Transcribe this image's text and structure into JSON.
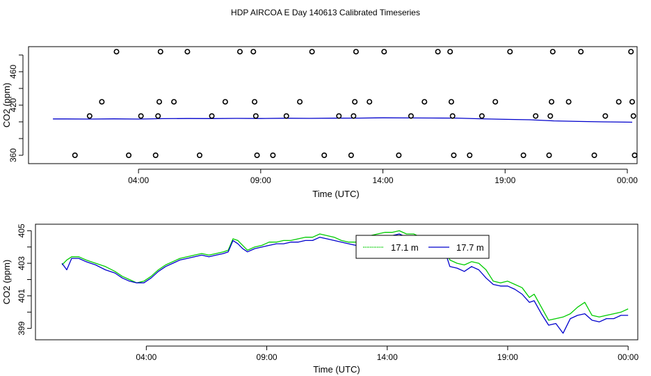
{
  "title": "HDP AIRCOA E  Day 140613  Calibrated Timeseries",
  "colors": {
    "green": "#00cc00",
    "blue": "#0000cc",
    "axis": "#000000"
  },
  "chart_data": [
    {
      "type": "scatter",
      "xlabel": "Time (UTC)",
      "ylabel": "CO2 (ppm)",
      "xticks": [
        {
          "x": 4,
          "label": "04:00"
        },
        {
          "x": 9,
          "label": "09:00"
        },
        {
          "x": 14,
          "label": "14:00"
        },
        {
          "x": 19,
          "label": "19:00"
        },
        {
          "x": 24,
          "label": "00:00"
        }
      ],
      "yticks": [
        360,
        420,
        460
      ],
      "xlim": [
        -0.5,
        24.4
      ],
      "ylim": [
        350,
        490
      ],
      "grid": false,
      "scatter_points": [
        {
          "x": 1.4,
          "y": 360
        },
        {
          "x": 2.0,
          "y": 407
        },
        {
          "x": 2.5,
          "y": 424
        },
        {
          "x": 3.1,
          "y": 484
        },
        {
          "x": 3.6,
          "y": 360
        },
        {
          "x": 4.1,
          "y": 407
        },
        {
          "x": 4.7,
          "y": 360
        },
        {
          "x": 4.8,
          "y": 407
        },
        {
          "x": 4.85,
          "y": 424
        },
        {
          "x": 4.9,
          "y": 484
        },
        {
          "x": 5.45,
          "y": 424
        },
        {
          "x": 6.0,
          "y": 484
        },
        {
          "x": 6.5,
          "y": 360
        },
        {
          "x": 7.0,
          "y": 407
        },
        {
          "x": 7.55,
          "y": 424
        },
        {
          "x": 8.15,
          "y": 484
        },
        {
          "x": 8.7,
          "y": 484
        },
        {
          "x": 8.75,
          "y": 424
        },
        {
          "x": 8.8,
          "y": 407
        },
        {
          "x": 8.85,
          "y": 360
        },
        {
          "x": 9.5,
          "y": 360
        },
        {
          "x": 10.05,
          "y": 407
        },
        {
          "x": 10.6,
          "y": 424
        },
        {
          "x": 11.1,
          "y": 484
        },
        {
          "x": 11.6,
          "y": 360
        },
        {
          "x": 12.2,
          "y": 407
        },
        {
          "x": 12.7,
          "y": 360
        },
        {
          "x": 12.8,
          "y": 407
        },
        {
          "x": 12.85,
          "y": 424
        },
        {
          "x": 12.9,
          "y": 484
        },
        {
          "x": 13.45,
          "y": 424
        },
        {
          "x": 14.05,
          "y": 484
        },
        {
          "x": 14.65,
          "y": 360
        },
        {
          "x": 15.15,
          "y": 407
        },
        {
          "x": 15.7,
          "y": 424
        },
        {
          "x": 16.25,
          "y": 484
        },
        {
          "x": 16.75,
          "y": 484
        },
        {
          "x": 16.8,
          "y": 424
        },
        {
          "x": 16.85,
          "y": 407
        },
        {
          "x": 16.9,
          "y": 360
        },
        {
          "x": 17.55,
          "y": 360
        },
        {
          "x": 18.05,
          "y": 407
        },
        {
          "x": 18.6,
          "y": 424
        },
        {
          "x": 19.2,
          "y": 484
        },
        {
          "x": 19.75,
          "y": 360
        },
        {
          "x": 20.25,
          "y": 407
        },
        {
          "x": 20.8,
          "y": 360
        },
        {
          "x": 20.85,
          "y": 407
        },
        {
          "x": 20.9,
          "y": 424
        },
        {
          "x": 20.95,
          "y": 484
        },
        {
          "x": 21.6,
          "y": 424
        },
        {
          "x": 22.1,
          "y": 484
        },
        {
          "x": 22.65,
          "y": 360
        },
        {
          "x": 23.1,
          "y": 407
        },
        {
          "x": 23.65,
          "y": 424
        },
        {
          "x": 24.15,
          "y": 484
        },
        {
          "x": 24.2,
          "y": 424
        },
        {
          "x": 24.25,
          "y": 407
        },
        {
          "x": 24.3,
          "y": 360
        }
      ],
      "line_series": [
        {
          "color": "#0000cc",
          "points": [
            [
              0.5,
              403.5
            ],
            [
              1.0,
              403.5
            ],
            [
              2.0,
              403.3
            ],
            [
              3.0,
              403.6
            ],
            [
              4.0,
              403.3
            ],
            [
              5.0,
              403.8
            ],
            [
              6.0,
              404.0
            ],
            [
              7.0,
              403.9
            ],
            [
              8.0,
              404.2
            ],
            [
              9.0,
              404.0
            ],
            [
              10.0,
              404.3
            ],
            [
              11.0,
              404.2
            ],
            [
              12.0,
              404.4
            ],
            [
              13.0,
              404.5
            ],
            [
              14.0,
              404.8
            ],
            [
              15.0,
              404.7
            ],
            [
              16.0,
              404.6
            ],
            [
              17.0,
              404.5
            ],
            [
              18.0,
              403.7
            ],
            [
              19.0,
              403.0
            ],
            [
              20.0,
              402.5
            ],
            [
              21.0,
              401.2
            ],
            [
              22.0,
              400.5
            ],
            [
              23.0,
              400.0
            ],
            [
              24.2,
              399.6
            ]
          ]
        }
      ]
    },
    {
      "type": "line",
      "xlabel": "Time (UTC)",
      "ylabel": "CO2 (ppm)",
      "xticks": [
        {
          "x": 4,
          "label": "04:00"
        },
        {
          "x": 9,
          "label": "09:00"
        },
        {
          "x": 14,
          "label": "14:00"
        },
        {
          "x": 19,
          "label": "19:00"
        },
        {
          "x": 24,
          "label": "00:00"
        }
      ],
      "yticks": [
        399,
        401,
        403,
        405
      ],
      "xlim": [
        -0.6,
        24.4
      ],
      "ylim": [
        398.3,
        405.4
      ],
      "grid": false,
      "legend_position": "upper-center",
      "series": [
        {
          "name": "17.1 m",
          "color": "#00cc00",
          "points": [
            [
              0.5,
              402.9
            ],
            [
              0.7,
              403.2
            ],
            [
              0.9,
              403.4
            ],
            [
              1.2,
              403.4
            ],
            [
              1.5,
              403.2
            ],
            [
              1.9,
              403.0
            ],
            [
              2.3,
              402.8
            ],
            [
              2.7,
              402.5
            ],
            [
              3.0,
              402.2
            ],
            [
              3.3,
              402.0
            ],
            [
              3.6,
              401.8
            ],
            [
              3.9,
              401.9
            ],
            [
              4.2,
              402.2
            ],
            [
              4.5,
              402.6
            ],
            [
              4.8,
              402.9
            ],
            [
              5.1,
              403.1
            ],
            [
              5.4,
              403.3
            ],
            [
              5.7,
              403.4
            ],
            [
              6.0,
              403.5
            ],
            [
              6.3,
              403.6
            ],
            [
              6.6,
              403.5
            ],
            [
              6.9,
              403.6
            ],
            [
              7.2,
              403.7
            ],
            [
              7.4,
              403.8
            ],
            [
              7.6,
              404.5
            ],
            [
              7.8,
              404.4
            ],
            [
              8.0,
              404.1
            ],
            [
              8.2,
              403.8
            ],
            [
              8.5,
              404.0
            ],
            [
              8.8,
              404.1
            ],
            [
              9.1,
              404.3
            ],
            [
              9.4,
              404.3
            ],
            [
              9.7,
              404.4
            ],
            [
              10.0,
              404.4
            ],
            [
              10.3,
              404.5
            ],
            [
              10.6,
              404.6
            ],
            [
              10.9,
              404.6
            ],
            [
              11.2,
              404.8
            ],
            [
              11.5,
              404.7
            ],
            [
              11.8,
              404.6
            ],
            [
              12.1,
              404.4
            ],
            [
              12.4,
              404.3
            ],
            [
              12.7,
              404.3
            ],
            [
              13.0,
              404.6
            ],
            [
              13.3,
              404.7
            ],
            [
              13.6,
              404.8
            ],
            [
              13.9,
              404.9
            ],
            [
              14.2,
              404.9
            ],
            [
              14.5,
              405.0
            ],
            [
              14.8,
              404.8
            ],
            [
              15.1,
              404.8
            ],
            [
              15.4,
              404.6
            ],
            [
              15.7,
              404.5
            ],
            [
              16.0,
              404.4
            ],
            [
              16.3,
              404.3
            ],
            [
              16.6,
              403.2
            ],
            [
              16.9,
              403.0
            ],
            [
              17.2,
              402.9
            ],
            [
              17.5,
              403.1
            ],
            [
              17.8,
              403.0
            ],
            [
              18.1,
              402.6
            ],
            [
              18.4,
              401.9
            ],
            [
              18.7,
              401.8
            ],
            [
              19.0,
              401.9
            ],
            [
              19.3,
              401.7
            ],
            [
              19.6,
              401.5
            ],
            [
              19.9,
              400.9
            ],
            [
              20.1,
              401.1
            ],
            [
              20.4,
              400.3
            ],
            [
              20.7,
              399.5
            ],
            [
              21.0,
              399.6
            ],
            [
              21.3,
              399.7
            ],
            [
              21.6,
              399.9
            ],
            [
              21.9,
              400.3
            ],
            [
              22.2,
              400.6
            ],
            [
              22.5,
              399.8
            ],
            [
              22.8,
              399.7
            ],
            [
              23.1,
              399.8
            ],
            [
              23.4,
              399.9
            ],
            [
              23.7,
              400.0
            ],
            [
              24.0,
              400.2
            ]
          ]
        },
        {
          "name": "17.7 m",
          "color": "#0000cc",
          "points": [
            [
              0.5,
              403.0
            ],
            [
              0.7,
              402.6
            ],
            [
              0.9,
              403.3
            ],
            [
              1.2,
              403.3
            ],
            [
              1.5,
              403.1
            ],
            [
              1.9,
              402.9
            ],
            [
              2.3,
              402.6
            ],
            [
              2.7,
              402.4
            ],
            [
              3.0,
              402.1
            ],
            [
              3.3,
              401.9
            ],
            [
              3.6,
              401.8
            ],
            [
              3.9,
              401.8
            ],
            [
              4.2,
              402.1
            ],
            [
              4.5,
              402.5
            ],
            [
              4.8,
              402.8
            ],
            [
              5.1,
              403.0
            ],
            [
              5.4,
              403.2
            ],
            [
              5.7,
              403.3
            ],
            [
              6.0,
              403.4
            ],
            [
              6.3,
              403.5
            ],
            [
              6.6,
              403.4
            ],
            [
              6.9,
              403.5
            ],
            [
              7.2,
              403.6
            ],
            [
              7.4,
              403.7
            ],
            [
              7.6,
              404.4
            ],
            [
              7.8,
              404.2
            ],
            [
              8.0,
              403.9
            ],
            [
              8.2,
              403.7
            ],
            [
              8.5,
              403.9
            ],
            [
              8.8,
              404.0
            ],
            [
              9.1,
              404.1
            ],
            [
              9.4,
              404.2
            ],
            [
              9.7,
              404.2
            ],
            [
              10.0,
              404.3
            ],
            [
              10.3,
              404.3
            ],
            [
              10.6,
              404.4
            ],
            [
              10.9,
              404.4
            ],
            [
              11.2,
              404.6
            ],
            [
              11.5,
              404.5
            ],
            [
              11.8,
              404.4
            ],
            [
              12.1,
              404.3
            ],
            [
              12.4,
              404.2
            ],
            [
              12.7,
              404.1
            ],
            [
              13.0,
              404.4
            ],
            [
              13.3,
              404.5
            ],
            [
              13.6,
              404.6
            ],
            [
              13.9,
              404.7
            ],
            [
              14.2,
              404.7
            ],
            [
              14.5,
              404.8
            ],
            [
              14.8,
              404.6
            ],
            [
              15.1,
              404.6
            ],
            [
              15.4,
              404.4
            ],
            [
              15.7,
              404.6
            ],
            [
              16.0,
              404.3
            ],
            [
              16.3,
              404.2
            ],
            [
              16.6,
              402.8
            ],
            [
              16.9,
              402.7
            ],
            [
              17.2,
              402.5
            ],
            [
              17.5,
              402.8
            ],
            [
              17.8,
              402.6
            ],
            [
              18.1,
              402.1
            ],
            [
              18.4,
              401.7
            ],
            [
              18.7,
              401.6
            ],
            [
              19.0,
              401.6
            ],
            [
              19.3,
              401.4
            ],
            [
              19.6,
              401.1
            ],
            [
              19.9,
              400.6
            ],
            [
              20.1,
              400.7
            ],
            [
              20.4,
              399.9
            ],
            [
              20.7,
              399.2
            ],
            [
              21.0,
              399.3
            ],
            [
              21.3,
              398.7
            ],
            [
              21.6,
              399.6
            ],
            [
              21.9,
              399.8
            ],
            [
              22.2,
              399.9
            ],
            [
              22.5,
              399.5
            ],
            [
              22.8,
              399.4
            ],
            [
              23.1,
              399.6
            ],
            [
              23.4,
              399.6
            ],
            [
              23.7,
              399.8
            ],
            [
              24.0,
              399.8
            ]
          ]
        }
      ]
    }
  ]
}
